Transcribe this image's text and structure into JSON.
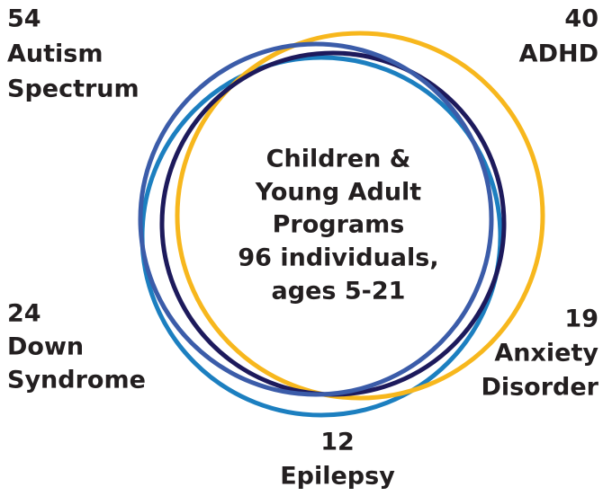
{
  "center": [
    "Children &",
    "Young Adult",
    "Programs",
    "96 individuals,",
    "ages 5-21"
  ],
  "groups": [
    {
      "count": 54,
      "label": [
        "Autism",
        "Spectrum"
      ]
    },
    {
      "count": 40,
      "label": [
        "ADHD"
      ]
    },
    {
      "count": 24,
      "label": [
        "Down",
        "Syndrome"
      ]
    },
    {
      "count": 19,
      "label": [
        "Anxiety",
        "Disorder"
      ]
    },
    {
      "count": 12,
      "label": [
        "Epilepsy"
      ]
    }
  ]
}
